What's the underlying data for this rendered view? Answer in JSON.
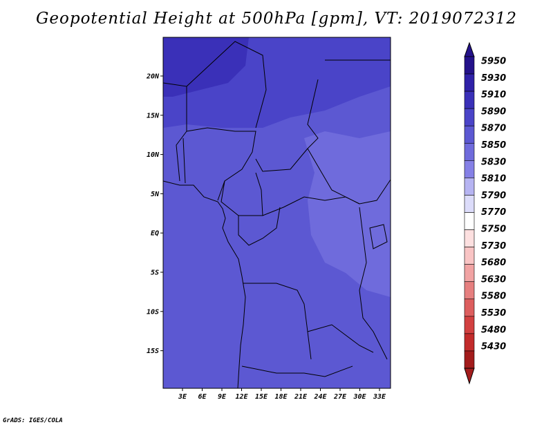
{
  "title": "Geopotential Height at 500hPa [gpm], VT: 2019072312",
  "credit": "GrADS: IGES/COLA",
  "map": {
    "lat_labels": [
      "20N",
      "15N",
      "10N",
      "5N",
      "EQ",
      "5S",
      "10S",
      "15S"
    ],
    "lon_labels": [
      "3E",
      "6E",
      "9E",
      "12E",
      "15E",
      "18E",
      "21E",
      "24E",
      "27E",
      "30E",
      "33E"
    ],
    "fill_colors": {
      "band_5910": "#3a30b8",
      "band_5890": "#4a44c8",
      "band_5870": "#5c58d2",
      "band_5850": "#6f6bdc",
      "band_5830": "#8580e6"
    }
  },
  "colorbar": {
    "levels": [
      "5950",
      "5930",
      "5910",
      "5890",
      "5870",
      "5850",
      "5830",
      "5810",
      "5790",
      "5770",
      "5750",
      "5730",
      "5680",
      "5630",
      "5580",
      "5530",
      "5480",
      "5430"
    ],
    "colors": [
      "#24128a",
      "#2f21a8",
      "#3a30b8",
      "#4a44c8",
      "#5c58d2",
      "#6f6bdc",
      "#8580e6",
      "#b6b4f2",
      "#dcdcfa",
      "#ffffff",
      "#fde0e0",
      "#f9c4c4",
      "#f1a3a3",
      "#e67f7f",
      "#dd5e5e",
      "#d24040",
      "#c22b2b",
      "#a31c1c"
    ]
  }
}
